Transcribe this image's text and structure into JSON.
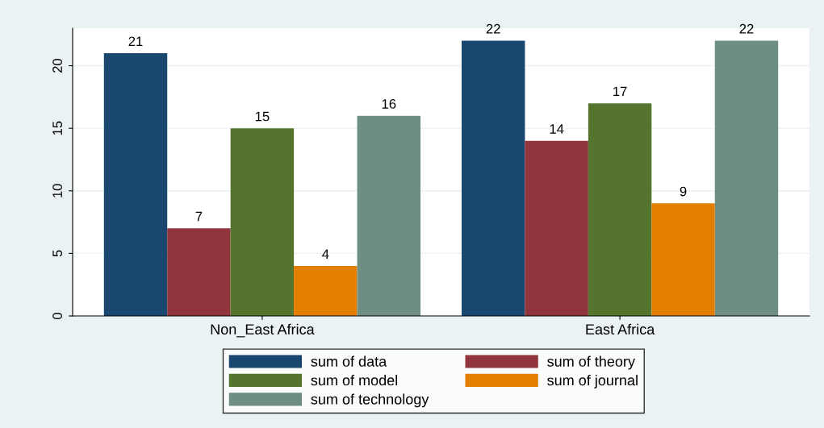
{
  "chart_data": {
    "type": "bar",
    "categories": [
      "Non_East Africa",
      "East Africa"
    ],
    "series": [
      {
        "name": "sum of data",
        "color": "#1a476f",
        "values": [
          21,
          22
        ]
      },
      {
        "name": "sum of theory",
        "color": "#90353b",
        "values": [
          7,
          14
        ]
      },
      {
        "name": "sum of model",
        "color": "#55752f",
        "values": [
          15,
          17
        ]
      },
      {
        "name": "sum of journal",
        "color": "#e37e00",
        "values": [
          4,
          9
        ]
      },
      {
        "name": "sum of technology",
        "color": "#6e8e84",
        "values": [
          16,
          22
        ]
      }
    ],
    "ylim": [
      0,
      23
    ],
    "yticks": [
      0,
      5,
      10,
      15,
      20
    ],
    "grid": "y",
    "legend": "bottom",
    "data_labels": true
  }
}
